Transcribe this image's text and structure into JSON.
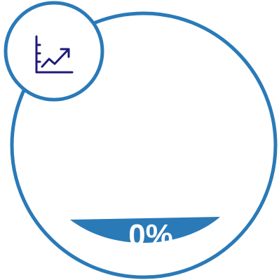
{
  "gauge": {
    "percent_label": "0%",
    "fill_fraction": 0.0,
    "accent_color": "#2a7ab8",
    "icon": "trend-chart-icon",
    "icon_color": "#1f1a7a"
  }
}
